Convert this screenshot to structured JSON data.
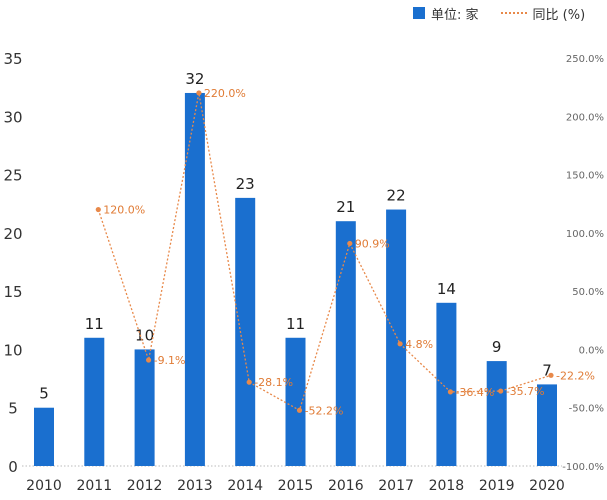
{
  "chart_data": {
    "type": "bar",
    "title": "",
    "categories": [
      "2010",
      "2011",
      "2012",
      "2013",
      "2014",
      "2015",
      "2016",
      "2017",
      "2018",
      "2019",
      "2020"
    ],
    "series": [
      {
        "name": "单位: 家",
        "type": "bar",
        "axis": "left",
        "values": [
          5,
          11,
          10,
          32,
          23,
          11,
          21,
          22,
          14,
          9,
          7
        ],
        "labels": [
          "5",
          "11",
          "10",
          "32",
          "23",
          "11",
          "21",
          "22",
          "14",
          "9",
          "7"
        ]
      },
      {
        "name": "同比 (%)",
        "type": "line",
        "axis": "right",
        "values": [
          null,
          120.0,
          -9.1,
          220.0,
          -28.1,
          -52.2,
          90.9,
          4.8,
          -36.4,
          -35.7,
          -22.2
        ],
        "labels": [
          "",
          "120.0%",
          "-9.1%",
          "220.0%",
          "-28.1%",
          "-52.2%",
          "90.9%",
          "4.8%",
          "-36.4%",
          "-35.7%",
          "-22.2%"
        ]
      }
    ],
    "left_axis": {
      "min": 0,
      "max": 35,
      "ticks": [
        "0",
        "5",
        "10",
        "15",
        "20",
        "25",
        "30",
        "35"
      ]
    },
    "right_axis": {
      "min": -100,
      "max": 250,
      "ticks": [
        "-100.0%",
        "-50.0%",
        "0.0%",
        "50.0%",
        "100.0%",
        "150.0%",
        "200.0%",
        "250.0%"
      ]
    },
    "grid": false,
    "legend": "top-right"
  },
  "colors": {
    "bar": "#1a6fcf",
    "line": "#e8894a",
    "label": "#e07b35",
    "axis_text": "#333333",
    "right_axis_text": "#666666"
  }
}
